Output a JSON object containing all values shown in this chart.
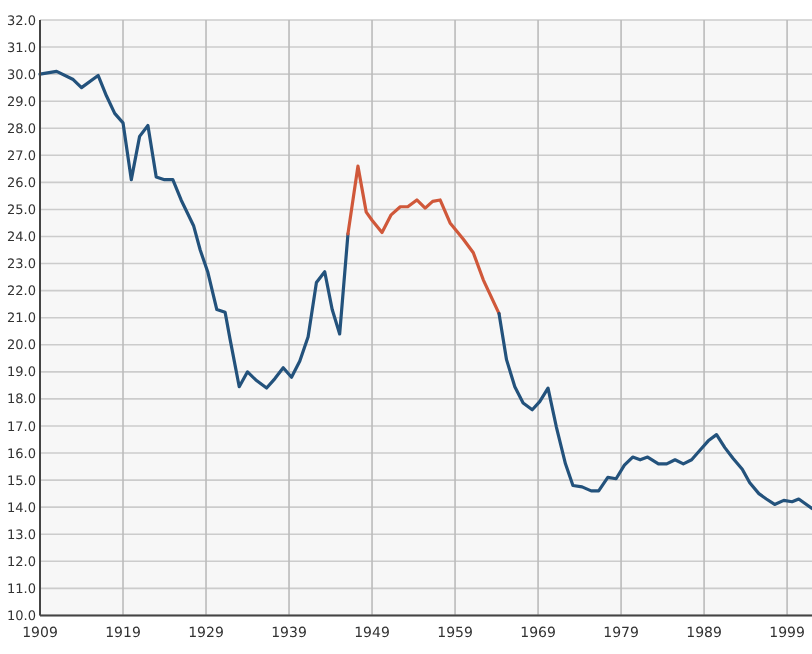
{
  "chart_data": {
    "type": "line",
    "xlim": [
      1909,
      2002
    ],
    "ylim": [
      10,
      32
    ],
    "xticks": [
      1909,
      1919,
      1929,
      1939,
      1949,
      1959,
      1969,
      1979,
      1989,
      1999
    ],
    "yticks": [
      {
        "value": 10,
        "label": "10.0"
      },
      {
        "value": 11,
        "label": "11.0"
      },
      {
        "value": 12,
        "label": "12.0"
      },
      {
        "value": 13,
        "label": "13.0"
      },
      {
        "value": 14,
        "label": "14.0"
      },
      {
        "value": 15,
        "label": "15.0"
      },
      {
        "value": 16,
        "label": "16.0"
      },
      {
        "value": 17,
        "label": "17.0"
      },
      {
        "value": 18,
        "label": "18.0"
      },
      {
        "value": 19,
        "label": "19.0"
      },
      {
        "value": 20,
        "label": "20.0"
      },
      {
        "value": 21,
        "label": "21.0"
      },
      {
        "value": 22,
        "label": "22.0"
      },
      {
        "value": 23,
        "label": "23.0"
      },
      {
        "value": 24,
        "label": "24.0"
      },
      {
        "value": 25,
        "label": "25.0"
      },
      {
        "value": 26,
        "label": "26.0"
      },
      {
        "value": 27,
        "label": "27.0"
      },
      {
        "value": 28,
        "label": "28.0"
      },
      {
        "value": 29,
        "label": "29.0"
      },
      {
        "value": 30,
        "label": "30.0"
      },
      {
        "value": 31,
        "label": "31.0"
      },
      {
        "value": 32,
        "label": "32.0"
      }
    ],
    "grid": true,
    "series": [
      {
        "color": "#23527c",
        "x": [
          1909,
          1911,
          1913,
          1914,
          1916,
          1917,
          1918,
          1919,
          1920,
          1921,
          1922,
          1923,
          1924,
          1925,
          1926,
          1927.5,
          1928.3,
          1929.2,
          1930.3,
          1931.3,
          1931.9,
          1933,
          1934,
          1935,
          1936.3,
          1937.3,
          1938.3,
          1939.3,
          1940.3,
          1941.3,
          1942.3,
          1943.3,
          1944.2,
          1945.1,
          1946.1
        ],
        "values": [
          30.0,
          30.1,
          29.8,
          29.5,
          29.95,
          29.2,
          28.55,
          28.2,
          26.1,
          27.7,
          28.1,
          26.2,
          26.1,
          26.1,
          25.35,
          24.4,
          23.5,
          22.7,
          21.3,
          21.2,
          20.2,
          18.45,
          19.0,
          18.7,
          18.4,
          18.75,
          19.15,
          18.8,
          19.4,
          20.3,
          22.3,
          22.7,
          21.3,
          20.4,
          24.1
        ]
      },
      {
        "color": "#d0583a",
        "x": [
          1946.1,
          1947.3,
          1948.3,
          1949,
          1950.2,
          1951.3,
          1952.4,
          1953.3,
          1954.4,
          1955.4,
          1956.3,
          1957.2,
          1958.4,
          1960,
          1961.2,
          1962.4,
          1964.3
        ],
        "values": [
          24.1,
          26.6,
          24.9,
          24.6,
          24.15,
          24.8,
          25.1,
          25.1,
          25.35,
          25.05,
          25.3,
          25.35,
          24.5,
          23.9,
          23.4,
          22.4,
          21.15
        ]
      },
      {
        "color": "#23527c",
        "x": [
          1964.3,
          1965.2,
          1966.2,
          1967.2,
          1968.3,
          1969.2,
          1970.2,
          1971.2,
          1972.3,
          1973.2,
          1974.3,
          1975.4,
          1976.3,
          1977.4,
          1978.4,
          1979.4,
          1980.4,
          1981.3,
          1982.2,
          1983.5,
          1984.5,
          1985.5,
          1986.5,
          1987.5,
          1988.5,
          1989.5,
          1990.5,
          1991.5,
          1992.5,
          1993.6,
          1994.5,
          1995.6,
          1996.5,
          1997.5,
          1998.6,
          1999.6,
          2000.4,
          2002
        ],
        "values": [
          21.15,
          19.45,
          18.45,
          17.85,
          17.6,
          17.9,
          18.4,
          16.97,
          15.6,
          14.8,
          14.75,
          14.6,
          14.6,
          15.1,
          15.05,
          15.55,
          15.85,
          15.75,
          15.85,
          15.6,
          15.6,
          15.75,
          15.6,
          15.75,
          16.1,
          16.45,
          16.68,
          16.2,
          15.8,
          15.4,
          14.9,
          14.5,
          14.3,
          14.1,
          14.25,
          14.2,
          14.3,
          13.95
        ]
      }
    ]
  }
}
